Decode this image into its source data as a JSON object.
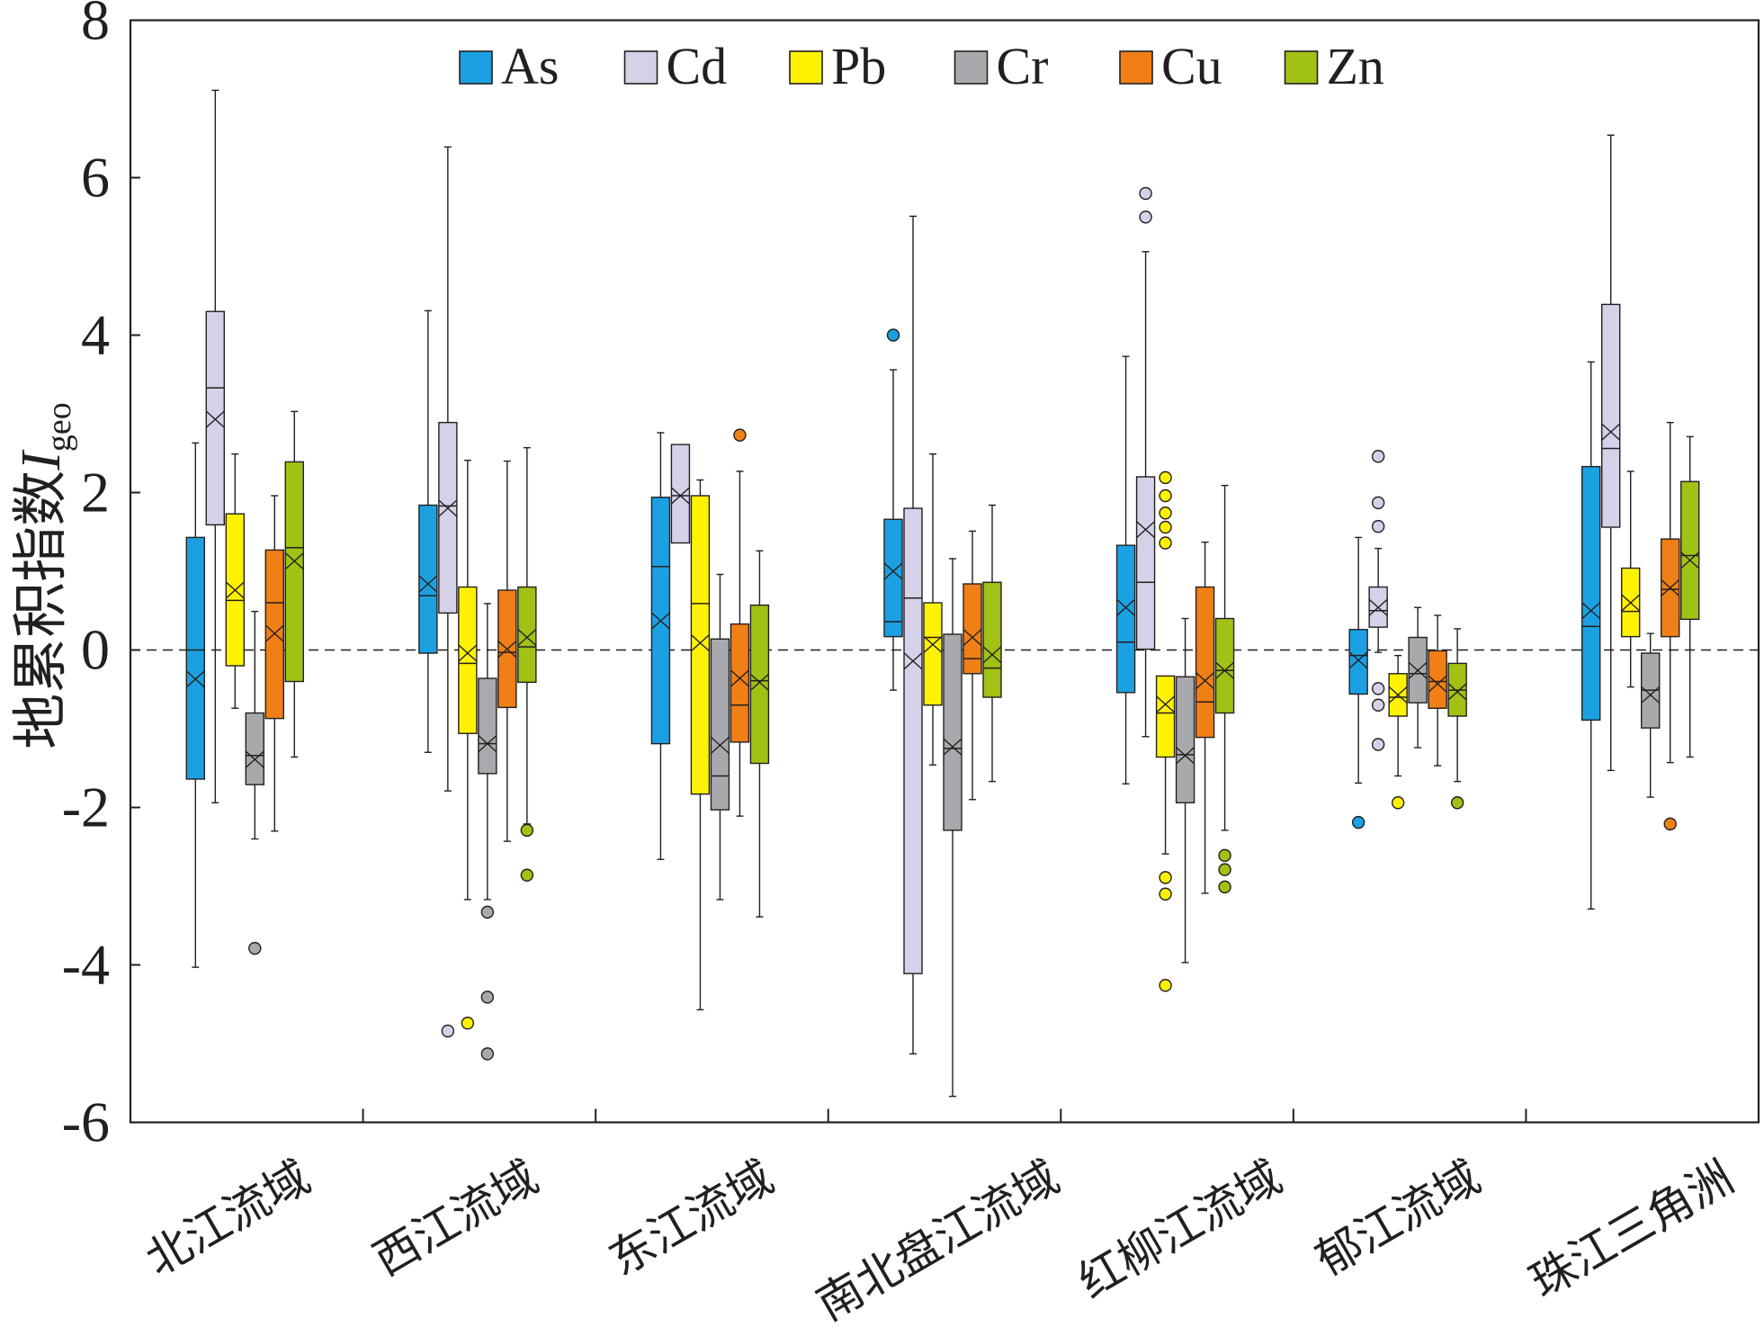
{
  "chart_data": {
    "type": "box",
    "ylabel": "地累积指数",
    "ylabel_symbol": "I",
    "ylabel_subscript": "geo",
    "ylim": [
      -6,
      8
    ],
    "yticks": [
      8,
      6,
      4,
      2,
      0,
      -2,
      -4,
      -6
    ],
    "reference_line": 0,
    "grid": false,
    "legend_position": "top-center",
    "categories": [
      "北江流域",
      "西江流域",
      "东江流域",
      "南北盘江流域",
      "红柳江流域",
      "郁江流域",
      "珠江三角洲"
    ],
    "series": [
      {
        "name": "As",
        "color": "#1ba1e2",
        "boxes": [
          {
            "low": -4.03,
            "q1": -1.64,
            "median": 0.0,
            "q3": 1.43,
            "high": 2.63,
            "mean": -0.37,
            "outliers": []
          },
          {
            "low": -1.3,
            "q1": -0.04,
            "median": 0.69,
            "q3": 1.84,
            "high": 4.31,
            "mean": 0.84,
            "outliers": []
          },
          {
            "low": -2.66,
            "q1": -1.19,
            "median": 1.06,
            "q3": 1.94,
            "high": 2.76,
            "mean": 0.37,
            "outliers": []
          },
          {
            "low": -0.51,
            "q1": 0.17,
            "median": 0.36,
            "q3": 1.66,
            "high": 3.56,
            "mean": 1.0,
            "outliers": [
              4.0
            ]
          },
          {
            "low": -1.7,
            "q1": -0.54,
            "median": 0.1,
            "q3": 1.33,
            "high": 3.73,
            "mean": 0.54,
            "outliers": []
          },
          {
            "low": -1.69,
            "q1": -0.56,
            "median": -0.07,
            "q3": 0.26,
            "high": 1.43,
            "mean": -0.13,
            "outliers": [
              -2.19
            ]
          },
          {
            "low": -3.29,
            "q1": -0.89,
            "median": 0.3,
            "q3": 2.33,
            "high": 3.66,
            "mean": 0.5,
            "outliers": []
          }
        ]
      },
      {
        "name": "Cd",
        "color": "#d4d1e8",
        "boxes": [
          {
            "low": -1.94,
            "q1": 1.59,
            "median": 3.33,
            "q3": 4.3,
            "high": 7.11,
            "mean": 2.93,
            "outliers": []
          },
          {
            "low": -1.79,
            "q1": 0.47,
            "median": 1.83,
            "q3": 2.89,
            "high": 6.39,
            "mean": 1.8,
            "outliers": [
              -4.84
            ]
          },
          {
            "low": 1.36,
            "q1": 1.36,
            "median": 1.96,
            "q3": 2.61,
            "high": 2.61,
            "mean": 1.96,
            "outliers": []
          },
          {
            "low": -5.13,
            "q1": -4.11,
            "median": 0.66,
            "q3": 1.8,
            "high": 5.51,
            "mean": -0.14,
            "outliers": []
          },
          {
            "low": -1.1,
            "q1": 0.01,
            "median": 0.86,
            "q3": 2.2,
            "high": 5.06,
            "mean": 1.53,
            "outliers": [
              5.8,
              5.5
            ]
          },
          {
            "low": -0.03,
            "q1": 0.29,
            "median": 0.5,
            "q3": 0.8,
            "high": 1.29,
            "mean": 0.54,
            "outliers": [
              2.46,
              1.87,
              1.57,
              -0.49,
              -0.7,
              -1.2
            ]
          },
          {
            "low": -1.53,
            "q1": 1.56,
            "median": 2.56,
            "q3": 4.39,
            "high": 6.54,
            "mean": 2.77,
            "outliers": []
          }
        ]
      },
      {
        "name": "Pb",
        "color": "#fff200",
        "boxes": [
          {
            "low": -0.74,
            "q1": -0.2,
            "median": 0.63,
            "q3": 1.73,
            "high": 2.49,
            "mean": 0.76,
            "outliers": []
          },
          {
            "low": -3.17,
            "q1": -1.06,
            "median": -0.17,
            "q3": 0.8,
            "high": 2.41,
            "mean": -0.04,
            "outliers": [
              -4.74
            ]
          },
          {
            "low": -4.57,
            "q1": -1.83,
            "median": 0.59,
            "q3": 1.96,
            "high": 2.16,
            "mean": 0.09,
            "outliers": []
          },
          {
            "low": -1.46,
            "q1": -0.7,
            "median": 0.16,
            "q3": 0.6,
            "high": 2.49,
            "mean": 0.07,
            "outliers": []
          },
          {
            "low": -2.59,
            "q1": -1.36,
            "median": -0.8,
            "q3": -0.33,
            "high": -0.33,
            "mean": -0.69,
            "outliers": [
              2.19,
              1.96,
              1.74,
              1.56,
              1.36,
              -2.89,
              -3.1,
              -4.26
            ]
          },
          {
            "low": -1.6,
            "q1": -0.84,
            "median": -0.6,
            "q3": -0.3,
            "high": -0.07,
            "mean": -0.57,
            "outliers": [
              -1.94
            ]
          },
          {
            "low": -0.47,
            "q1": 0.17,
            "median": 0.49,
            "q3": 1.04,
            "high": 2.27,
            "mean": 0.6,
            "outliers": []
          }
        ]
      },
      {
        "name": "Cr",
        "color": "#a7a9ac",
        "boxes": [
          {
            "low": -2.4,
            "q1": -1.71,
            "median": -1.34,
            "q3": -0.8,
            "high": 0.49,
            "mean": -1.39,
            "outliers": [
              -3.79
            ]
          },
          {
            "low": -3.17,
            "q1": -1.57,
            "median": -1.19,
            "q3": -0.36,
            "high": 0.59,
            "mean": -1.19,
            "outliers": [
              -3.33,
              -4.41,
              -5.13
            ]
          },
          {
            "low": -3.17,
            "q1": -2.03,
            "median": -1.6,
            "q3": 0.14,
            "high": 0.96,
            "mean": -1.21,
            "outliers": []
          },
          {
            "low": -5.67,
            "q1": -2.29,
            "median": -1.25,
            "q3": 0.2,
            "high": 1.16,
            "mean": -1.23,
            "outliers": []
          },
          {
            "low": -3.97,
            "q1": -1.94,
            "median": -1.33,
            "q3": -0.34,
            "high": 0.4,
            "mean": -1.34,
            "outliers": []
          },
          {
            "low": -1.24,
            "q1": -0.67,
            "median": -0.3,
            "q3": 0.16,
            "high": 0.54,
            "mean": -0.26,
            "outliers": []
          },
          {
            "low": -1.87,
            "q1": -0.99,
            "median": -0.51,
            "q3": -0.04,
            "high": 0.21,
            "mean": -0.57,
            "outliers": []
          }
        ]
      },
      {
        "name": "Cu",
        "color": "#f07f16",
        "boxes": [
          {
            "low": -2.3,
            "q1": -0.87,
            "median": 0.6,
            "q3": 1.27,
            "high": 1.96,
            "mean": 0.21,
            "outliers": []
          },
          {
            "low": -2.43,
            "q1": -0.73,
            "median": -0.03,
            "q3": 0.76,
            "high": 2.4,
            "mean": 0.01,
            "outliers": []
          },
          {
            "low": -2.11,
            "q1": -1.17,
            "median": -0.7,
            "q3": 0.33,
            "high": 2.27,
            "mean": -0.36,
            "outliers": [
              2.73
            ]
          },
          {
            "low": -1.9,
            "q1": -0.3,
            "median": -0.11,
            "q3": 0.84,
            "high": 1.51,
            "mean": 0.16,
            "outliers": []
          },
          {
            "low": -3.09,
            "q1": -1.11,
            "median": -0.66,
            "q3": 0.8,
            "high": 1.37,
            "mean": -0.39,
            "outliers": []
          },
          {
            "low": -1.47,
            "q1": -0.74,
            "median": -0.4,
            "q3": -0.01,
            "high": 0.44,
            "mean": -0.43,
            "outliers": []
          },
          {
            "low": -1.43,
            "q1": 0.17,
            "median": 0.77,
            "q3": 1.41,
            "high": 2.89,
            "mean": 0.79,
            "outliers": [
              -2.21
            ]
          }
        ]
      },
      {
        "name": "Zn",
        "color": "#9fc215",
        "boxes": [
          {
            "low": -1.36,
            "q1": -0.4,
            "median": 1.3,
            "q3": 2.39,
            "high": 3.03,
            "mean": 1.13,
            "outliers": []
          },
          {
            "low": -2.21,
            "q1": -0.41,
            "median": 0.04,
            "q3": 0.8,
            "high": 2.57,
            "mean": 0.16,
            "outliers": [
              -2.29,
              -2.86
            ]
          },
          {
            "low": -3.39,
            "q1": -1.44,
            "median": -0.39,
            "q3": 0.57,
            "high": 1.26,
            "mean": -0.41,
            "outliers": []
          },
          {
            "low": -1.67,
            "q1": -0.6,
            "median": -0.23,
            "q3": 0.86,
            "high": 1.84,
            "mean": -0.06,
            "outliers": []
          },
          {
            "low": -2.29,
            "q1": -0.8,
            "median": -0.26,
            "q3": 0.4,
            "high": 2.09,
            "mean": -0.26,
            "outliers": [
              -2.61,
              -2.79,
              -3.01
            ]
          },
          {
            "low": -1.67,
            "q1": -0.84,
            "median": -0.51,
            "q3": -0.17,
            "high": 0.27,
            "mean": -0.53,
            "outliers": [
              -1.94
            ]
          },
          {
            "low": -1.36,
            "q1": 0.39,
            "median": 1.2,
            "q3": 2.14,
            "high": 2.71,
            "mean": 1.14,
            "outliers": []
          }
        ]
      }
    ]
  }
}
